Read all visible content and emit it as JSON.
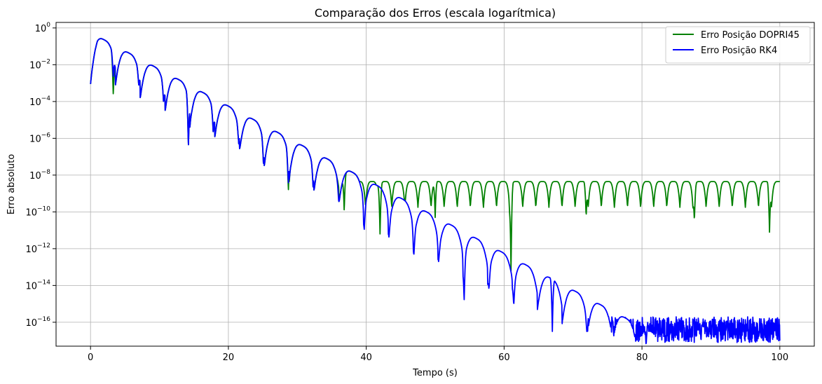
{
  "chart_data": {
    "type": "line",
    "title": "Comparação dos Erros (escala logarítmica)",
    "xlabel": "Tempo (s)",
    "ylabel": "Erro absoluto",
    "xlim": [
      -5,
      105
    ],
    "ylim_log10": [
      -17.3,
      0.3
    ],
    "yscale": "log",
    "grid": true,
    "legend_position": "top-right",
    "x_ticks": [
      {
        "value": 0,
        "label": "0"
      },
      {
        "value": 20,
        "label": "20"
      },
      {
        "value": 40,
        "label": "40"
      },
      {
        "value": 60,
        "label": "60"
      },
      {
        "value": 80,
        "label": "80"
      },
      {
        "value": 100,
        "label": "100"
      }
    ],
    "y_ticks": [
      {
        "exp": 0,
        "base": "10",
        "sup": "0"
      },
      {
        "exp": -2,
        "base": "10",
        "sup": "−2"
      },
      {
        "exp": -4,
        "base": "10",
        "sup": "−4"
      },
      {
        "exp": -6,
        "base": "10",
        "sup": "−6"
      },
      {
        "exp": -8,
        "base": "10",
        "sup": "−8"
      },
      {
        "exp": -10,
        "base": "10",
        "sup": "−10"
      },
      {
        "exp": -12,
        "base": "10",
        "sup": "−12"
      },
      {
        "exp": -14,
        "base": "10",
        "sup": "−14"
      },
      {
        "exp": -16,
        "base": "10",
        "sup": "−16"
      }
    ],
    "series": [
      {
        "name": "Erro Posição DOPRI45",
        "color": "#008000",
        "envelope": {
          "decay_peak_log10_at_t1": -0.45,
          "decay_rate_log10_per_s": -0.2,
          "half_period_s": 3.6,
          "noise_floor_log10": -8.35,
          "end_x": 100
        },
        "dips": [
          {
            "x": 3.3,
            "log10": -3.7
          },
          {
            "x": 7.0,
            "log10": -3.1
          },
          {
            "x": 10.6,
            "log10": -4.1
          },
          {
            "x": 14.2,
            "log10": -6.5
          },
          {
            "x": 17.8,
            "log10": -5.7
          },
          {
            "x": 21.5,
            "log10": -6.3
          },
          {
            "x": 25.1,
            "log10": -7.5
          },
          {
            "x": 28.7,
            "log10": -8.9
          },
          {
            "x": 32.3,
            "log10": -8.7
          },
          {
            "x": 36.8,
            "log10": -10.0
          },
          {
            "x": 42.0,
            "log10": -11.2
          },
          {
            "x": 50.0,
            "log10": -10.3
          },
          {
            "x": 61.0,
            "log10": -13.2
          },
          {
            "x": 71.9,
            "log10": -10.3
          },
          {
            "x": 87.6,
            "log10": -10.5
          },
          {
            "x": 98.5,
            "log10": -11.1
          }
        ]
      },
      {
        "name": "Erro Posição RK4",
        "color": "#0000ff",
        "envelope": {
          "decay_peak_log10_at_t1": -0.45,
          "decay_rate_log10_per_s": -0.2,
          "half_period_s": 3.6,
          "noise_floor_log10": -15.0,
          "noise_start_x": 64,
          "end_x": 100
        },
        "dips": [
          {
            "x": 3.3,
            "log10": -2.7
          },
          {
            "x": 7.0,
            "log10": -3.1
          },
          {
            "x": 10.6,
            "log10": -4.1
          },
          {
            "x": 14.2,
            "log10": -6.5
          },
          {
            "x": 17.8,
            "log10": -5.7
          },
          {
            "x": 21.5,
            "log10": -6.3
          },
          {
            "x": 25.1,
            "log10": -7.5
          },
          {
            "x": 28.7,
            "log10": -8.5
          },
          {
            "x": 32.3,
            "log10": -8.7
          },
          {
            "x": 36.0,
            "log10": -9.4
          },
          {
            "x": 39.7,
            "log10": -11.0
          },
          {
            "x": 43.3,
            "log10": -11.4
          },
          {
            "x": 46.9,
            "log10": -12.4
          },
          {
            "x": 50.5,
            "log10": -12.7
          },
          {
            "x": 54.2,
            "log10": -14.9
          },
          {
            "x": 57.8,
            "log10": -14.2
          },
          {
            "x": 61.4,
            "log10": -15.1
          },
          {
            "x": 67.0,
            "log10": -16.5
          },
          {
            "x": 72.0,
            "log10": -16.5
          },
          {
            "x": 80.6,
            "log10": -17.3
          },
          {
            "x": 81.0,
            "log10": -16.5
          },
          {
            "x": 89.0,
            "log10": -16.0
          }
        ]
      }
    ]
  }
}
